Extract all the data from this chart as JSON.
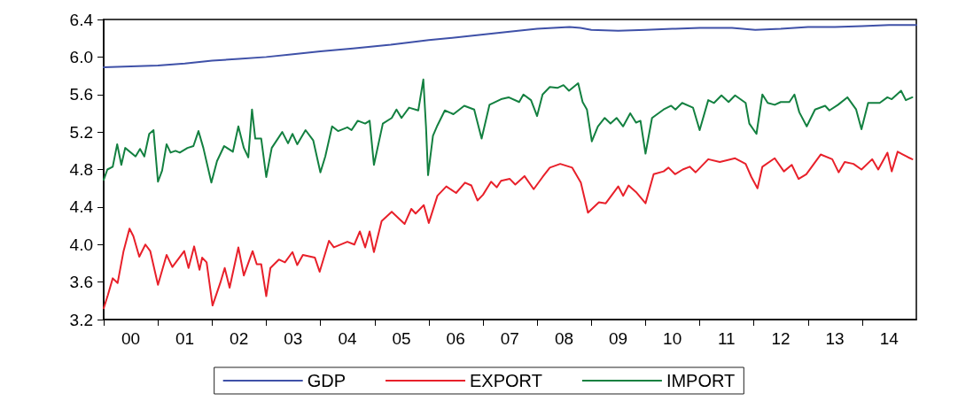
{
  "chart_data": {
    "type": "line",
    "legend": "bottom",
    "grid": false,
    "line_style": "solid",
    "xlim": [
      "2000-01-01",
      "2015-01-01"
    ],
    "xticks": [
      {
        "value": "2000-01-01",
        "label": null
      },
      {
        "value": "2000-07-01",
        "label": "00"
      },
      {
        "value": "2001-01-01",
        "label": null
      },
      {
        "value": "2001-07-01",
        "label": "01"
      },
      {
        "value": "2002-01-01",
        "label": null
      },
      {
        "value": "2002-07-01",
        "label": "02"
      },
      {
        "value": "2003-01-01",
        "label": null
      },
      {
        "value": "2003-07-01",
        "label": "03"
      },
      {
        "value": "2004-01-01",
        "label": null
      },
      {
        "value": "2004-07-01",
        "label": "04"
      },
      {
        "value": "2005-01-01",
        "label": null
      },
      {
        "value": "2005-07-01",
        "label": "05"
      },
      {
        "value": "2006-01-01",
        "label": null
      },
      {
        "value": "2006-07-01",
        "label": "06"
      },
      {
        "value": "2007-01-01",
        "label": null
      },
      {
        "value": "2007-07-01",
        "label": "07"
      },
      {
        "value": "2008-01-01",
        "label": null
      },
      {
        "value": "2008-07-01",
        "label": "08"
      },
      {
        "value": "2009-01-01",
        "label": null
      },
      {
        "value": "2009-07-01",
        "label": "09"
      },
      {
        "value": "2010-01-01",
        "label": null
      },
      {
        "value": "2010-07-01",
        "label": "10"
      },
      {
        "value": "2011-01-01",
        "label": null
      },
      {
        "value": "2011-07-01",
        "label": "11"
      },
      {
        "value": "2012-01-01",
        "label": null
      },
      {
        "value": "2012-07-01",
        "label": "12"
      },
      {
        "value": "2013-01-01",
        "label": null
      },
      {
        "value": "2013-07-01",
        "label": "13"
      },
      {
        "value": "2014-01-01",
        "label": null
      },
      {
        "value": "2014-07-01",
        "label": "14"
      }
    ],
    "ylim": [
      3.2,
      6.4
    ],
    "yticks": [
      {
        "value": 3.2,
        "label": "3.2"
      },
      {
        "value": 3.6,
        "label": "3.6"
      },
      {
        "value": 4,
        "label": "4.0"
      },
      {
        "value": 4.4,
        "label": "4.4"
      },
      {
        "value": 4.8,
        "label": "4.8"
      },
      {
        "value": 5.2,
        "label": "5.2"
      },
      {
        "value": 5.6,
        "label": "5.6"
      },
      {
        "value": 6,
        "label": "6.0"
      },
      {
        "value": 6.4,
        "label": "6.4"
      }
    ],
    "series": [
      {
        "name": "GDP",
        "color": "#3f51a8",
        "x": [
          "2000-01-01",
          "2000-07-01",
          "2001-01-01",
          "2001-07-01",
          "2002-01-01",
          "2002-07-01",
          "2003-01-01",
          "2003-07-01",
          "2004-01-01",
          "2004-08-07",
          "2005-04-19",
          "2006-01-01",
          "2006-09-13",
          "2007-07-01",
          "2008-01-01",
          "2008-04-19",
          "2008-08-07",
          "2008-10-19",
          "2009-01-01",
          "2009-07-01",
          "2010-01-01",
          "2010-07-01",
          "2011-01-01",
          "2011-08-07",
          "2012-01-11",
          "2012-07-01",
          "2013-01-01",
          "2013-07-01",
          "2014-01-01",
          "2014-07-01",
          "2015-01-01"
        ],
        "values": [
          5.89,
          5.9,
          5.91,
          5.93,
          5.96,
          5.98,
          6,
          6.03,
          6.06,
          6.09,
          6.13,
          6.18,
          6.22,
          6.27,
          6.3,
          6.31,
          6.32,
          6.31,
          6.29,
          6.28,
          6.29,
          6.3,
          6.31,
          6.31,
          6.29,
          6.3,
          6.32,
          6.32,
          6.33,
          6.34,
          6.34
        ]
      },
      {
        "name": "EXPORT",
        "color": "#e8202a",
        "x": [
          "2000-01-01",
          "2000-01-29",
          "2000-03-02",
          "2000-04-04",
          "2000-05-14",
          "2000-06-23",
          "2000-07-19",
          "2000-08-28",
          "2000-10-08",
          "2000-11-10",
          "2001-01-01",
          "2001-02-28",
          "2001-04-08",
          "2001-06-27",
          "2001-07-26",
          "2001-09-02",
          "2001-10-08",
          "2001-10-26",
          "2001-11-25",
          "2002-01-04",
          "2002-02-25",
          "2002-03-27",
          "2002-04-29",
          "2002-06-27",
          "2002-08-03",
          "2002-10-01",
          "2002-10-29",
          "2002-11-28",
          "2003-01-01",
          "2003-01-29",
          "2003-03-27",
          "2003-05-07",
          "2003-06-27",
          "2003-07-29",
          "2003-09-05",
          "2003-11-25",
          "2003-12-27",
          "2004-02-28",
          "2004-04-01",
          "2004-07-01",
          "2004-08-17",
          "2004-09-23",
          "2004-10-29",
          "2004-11-28",
          "2004-12-27",
          "2005-02-17",
          "2005-04-26",
          "2005-07-22",
          "2005-09-05",
          "2005-10-04",
          "2005-11-28",
          "2006-01-01",
          "2006-02-28",
          "2006-04-29",
          "2006-07-04",
          "2006-09-02",
          "2006-10-15",
          "2006-11-25",
          "2007-01-01",
          "2007-02-25",
          "2007-04-04",
          "2007-05-03",
          "2007-07-01",
          "2007-08-07",
          "2007-10-08",
          "2007-12-09",
          "2008-02-07",
          "2008-03-27",
          "2008-06-05",
          "2008-08-25",
          "2008-10-22",
          "2008-12-09",
          "2009-02-21",
          "2009-04-08",
          "2009-07-01",
          "2009-08-03",
          "2009-09-09",
          "2009-10-29",
          "2010-01-01",
          "2010-02-25",
          "2010-05-03",
          "2010-06-05",
          "2010-07-19",
          "2010-09-09",
          "2010-10-26",
          "2010-12-05",
          "2011-02-28",
          "2011-05-17",
          "2011-08-28",
          "2011-11-07",
          "2011-12-16",
          "2012-01-26",
          "2012-02-28",
          "2012-05-21",
          "2012-07-22",
          "2012-09-13",
          "2012-10-29",
          "2012-12-20",
          "2013-03-27",
          "2013-06-13",
          "2013-07-26",
          "2013-09-05",
          "2013-11-03",
          "2013-12-27",
          "2014-03-09",
          "2014-04-19",
          "2014-06-20",
          "2014-07-19",
          "2014-08-28",
          "2014-11-07",
          "2014-12-05"
        ],
        "values": [
          3.32,
          3.46,
          3.64,
          3.59,
          3.93,
          4.17,
          4.09,
          3.87,
          4,
          3.93,
          3.57,
          3.89,
          3.76,
          3.93,
          3.75,
          3.98,
          3.73,
          3.86,
          3.81,
          3.35,
          3.59,
          3.75,
          3.54,
          3.97,
          3.67,
          3.93,
          3.79,
          3.79,
          3.45,
          3.75,
          3.84,
          3.81,
          3.92,
          3.78,
          3.89,
          3.86,
          3.71,
          4.04,
          3.97,
          4.03,
          4,
          4.14,
          3.97,
          4.14,
          3.92,
          4.25,
          4.35,
          4.22,
          4.38,
          4.33,
          4.42,
          4.23,
          4.52,
          4.62,
          4.55,
          4.66,
          4.63,
          4.47,
          4.53,
          4.67,
          4.61,
          4.68,
          4.7,
          4.64,
          4.73,
          4.59,
          4.72,
          4.82,
          4.86,
          4.82,
          4.66,
          4.34,
          4.45,
          4.44,
          4.62,
          4.52,
          4.63,
          4.56,
          4.44,
          4.75,
          4.78,
          4.82,
          4.75,
          4.8,
          4.83,
          4.77,
          4.91,
          4.88,
          4.92,
          4.86,
          4.72,
          4.6,
          4.83,
          4.92,
          4.78,
          4.85,
          4.7,
          4.75,
          4.96,
          4.91,
          4.77,
          4.88,
          4.86,
          4.8,
          4.91,
          4.8,
          4.98,
          4.78,
          4.99,
          4.93,
          4.91
        ]
      },
      {
        "name": "IMPORT",
        "color": "#138040",
        "x": [
          "2000-01-01",
          "2000-01-26",
          "2000-03-02",
          "2000-04-01",
          "2000-04-29",
          "2000-05-25",
          "2000-08-03",
          "2000-09-02",
          "2000-10-01",
          "2000-11-03",
          "2000-12-02",
          "2001-01-01",
          "2001-01-29",
          "2001-02-28",
          "2001-03-27",
          "2001-04-29",
          "2001-05-28",
          "2001-07-19",
          "2001-08-28",
          "2001-10-01",
          "2001-11-03",
          "2001-12-27",
          "2002-02-03",
          "2002-03-23",
          "2002-05-21",
          "2002-06-27",
          "2002-08-03",
          "2002-09-02",
          "2002-09-27",
          "2002-10-19",
          "2002-11-28",
          "2003-01-01",
          "2003-02-07",
          "2003-04-19",
          "2003-05-28",
          "2003-06-27",
          "2003-07-29",
          "2003-09-23",
          "2003-11-14",
          "2004-01-01",
          "2004-02-03",
          "2004-03-20",
          "2004-04-29",
          "2004-07-01",
          "2004-07-29",
          "2004-09-09",
          "2004-10-29",
          "2004-11-28",
          "2004-12-27",
          "2005-02-25",
          "2005-04-26",
          "2005-05-28",
          "2005-07-01",
          "2005-08-21",
          "2005-10-22",
          "2005-11-25",
          "2005-12-13",
          "2005-12-27",
          "2006-01-29",
          "2006-02-28",
          "2006-04-19",
          "2006-06-16",
          "2006-08-28",
          "2006-11-03",
          "2006-12-23",
          "2007-02-14",
          "2007-05-03",
          "2007-06-23",
          "2007-09-02",
          "2007-10-01",
          "2007-11-21",
          "2008-01-01",
          "2008-02-07",
          "2008-03-27",
          "2008-05-17",
          "2008-06-27",
          "2008-08-03",
          "2008-10-04",
          "2008-11-03",
          "2008-12-02",
          "2009-01-04",
          "2009-02-14",
          "2009-04-01",
          "2009-05-10",
          "2009-06-20",
          "2009-08-03",
          "2009-09-20",
          "2009-10-29",
          "2009-11-28",
          "2010-01-01",
          "2010-02-14",
          "2010-05-03",
          "2010-06-23",
          "2010-07-22",
          "2010-09-05",
          "2010-11-17",
          "2011-01-01",
          "2011-02-28",
          "2011-04-08",
          "2011-05-28",
          "2011-07-15",
          "2011-08-28",
          "2011-11-07",
          "2011-12-02",
          "2012-01-19",
          "2012-02-28",
          "2012-04-04",
          "2012-05-21",
          "2012-07-01",
          "2012-08-28",
          "2012-10-01",
          "2012-11-03",
          "2012-12-23",
          "2013-02-17",
          "2013-04-26",
          "2013-05-25",
          "2013-07-22",
          "2013-09-23",
          "2013-11-21",
          "2013-12-27",
          "2014-02-10",
          "2014-04-29",
          "2014-06-20",
          "2014-07-19",
          "2014-09-20",
          "2014-10-22",
          "2014-12-05"
        ],
        "values": [
          4.69,
          4.8,
          4.83,
          5.07,
          4.85,
          5.03,
          4.94,
          5.02,
          4.94,
          5.18,
          5.22,
          4.67,
          4.79,
          5.07,
          4.98,
          5,
          4.98,
          5.03,
          5.05,
          5.21,
          5.03,
          4.66,
          4.89,
          5.05,
          4.99,
          5.26,
          5.03,
          4.93,
          5.44,
          5.13,
          5.13,
          4.72,
          5.03,
          5.2,
          5.08,
          5.18,
          5.07,
          5.22,
          5.11,
          4.77,
          4.94,
          5.26,
          5.21,
          5.25,
          5.22,
          5.32,
          5.29,
          5.32,
          4.85,
          5.29,
          5.35,
          5.44,
          5.35,
          5.46,
          5.43,
          5.76,
          5.26,
          4.74,
          5.16,
          5.27,
          5.43,
          5.39,
          5.48,
          5.44,
          5.13,
          5.49,
          5.55,
          5.57,
          5.52,
          5.6,
          5.54,
          5.37,
          5.6,
          5.68,
          5.67,
          5.7,
          5.64,
          5.72,
          5.52,
          5.44,
          5.1,
          5.26,
          5.35,
          5.29,
          5.35,
          5.26,
          5.4,
          5.3,
          5.32,
          4.97,
          5.35,
          5.44,
          5.48,
          5.44,
          5.51,
          5.46,
          5.22,
          5.54,
          5.51,
          5.59,
          5.52,
          5.59,
          5.51,
          5.29,
          5.18,
          5.6,
          5.51,
          5.49,
          5.52,
          5.52,
          5.6,
          5.41,
          5.26,
          5.44,
          5.48,
          5.43,
          5.49,
          5.57,
          5.44,
          5.23,
          5.51,
          5.51,
          5.57,
          5.55,
          5.64,
          5.54,
          5.57
        ]
      }
    ]
  }
}
